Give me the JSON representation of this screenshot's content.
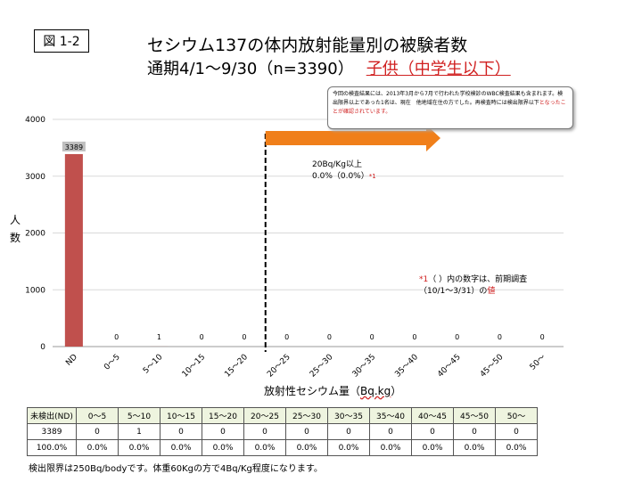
{
  "figure_label": "図 1-2",
  "title_line1": "セシウム137の体内放射能量別の被験者数",
  "title_line2_prefix": "通期4/1〜9/30（n=3390）",
  "title_line2_highlight": "子供（中学生以下）",
  "callout": {
    "text_part1": "今回の検査結果には、2013年3月から7月で行われた学校検診のWBC検査結果も含まれます。検出限界以上であった1名は、現在　他地域在住の方でした。再検査時には検出限界以下",
    "text_red": "となったことが確認されています。"
  },
  "annotation_20bq": {
    "line1": "20Bq/Kg以上",
    "line2": "0.0%（0.0%）",
    "mark": "*1"
  },
  "annotation_prev": {
    "mark": "*1",
    "line1": "（ ）内の数字は、前期調査",
    "line2_prefix": "（10/1〜3/31）の",
    "line2_red": "値"
  },
  "ylabel_chars": [
    "人",
    "数"
  ],
  "xlabel_prefix": "放射性セシウム量（",
  "xlabel_unit": "Bq.kg",
  "xlabel_suffix": "）",
  "chart_data": {
    "type": "bar",
    "categories": [
      "ND",
      "0〜5",
      "5〜10",
      "10〜15",
      "15〜20",
      "20〜25",
      "25〜30",
      "30〜35",
      "35〜40",
      "40〜45",
      "45〜50",
      "50〜"
    ],
    "values": [
      3389,
      0,
      1,
      0,
      0,
      0,
      0,
      0,
      0,
      0,
      0,
      0
    ],
    "data_labels": [
      "3389",
      "0",
      "1",
      "0",
      "0",
      "0",
      "0",
      "0",
      "0",
      "0",
      "0",
      "0"
    ],
    "yticks": [
      "0",
      "1000",
      "2000",
      "3000",
      "4000"
    ],
    "ylim": [
      0,
      4000
    ],
    "bar_color": "#c0504d",
    "threshold_category": "20〜25",
    "arrow_color": "#f07f1a"
  },
  "table": {
    "header": [
      "未検出(ND)",
      "0〜5",
      "5〜10",
      "10〜15",
      "15〜20",
      "20〜25",
      "25〜30",
      "30〜35",
      "35〜40",
      "40〜45",
      "45〜50",
      "50〜"
    ],
    "counts": [
      "3389",
      "0",
      "1",
      "0",
      "0",
      "0",
      "0",
      "0",
      "0",
      "0",
      "0",
      "0"
    ],
    "percents": [
      "100.0%",
      "0.0%",
      "0.0%",
      "0.0%",
      "0.0%",
      "0.0%",
      "0.0%",
      "0.0%",
      "0.0%",
      "0.0%",
      "0.0%",
      "0.0%"
    ]
  },
  "footnote": "検出限界は250Bq/bodyです。体重60Kgの方で4Bq/Kg程度になります。"
}
